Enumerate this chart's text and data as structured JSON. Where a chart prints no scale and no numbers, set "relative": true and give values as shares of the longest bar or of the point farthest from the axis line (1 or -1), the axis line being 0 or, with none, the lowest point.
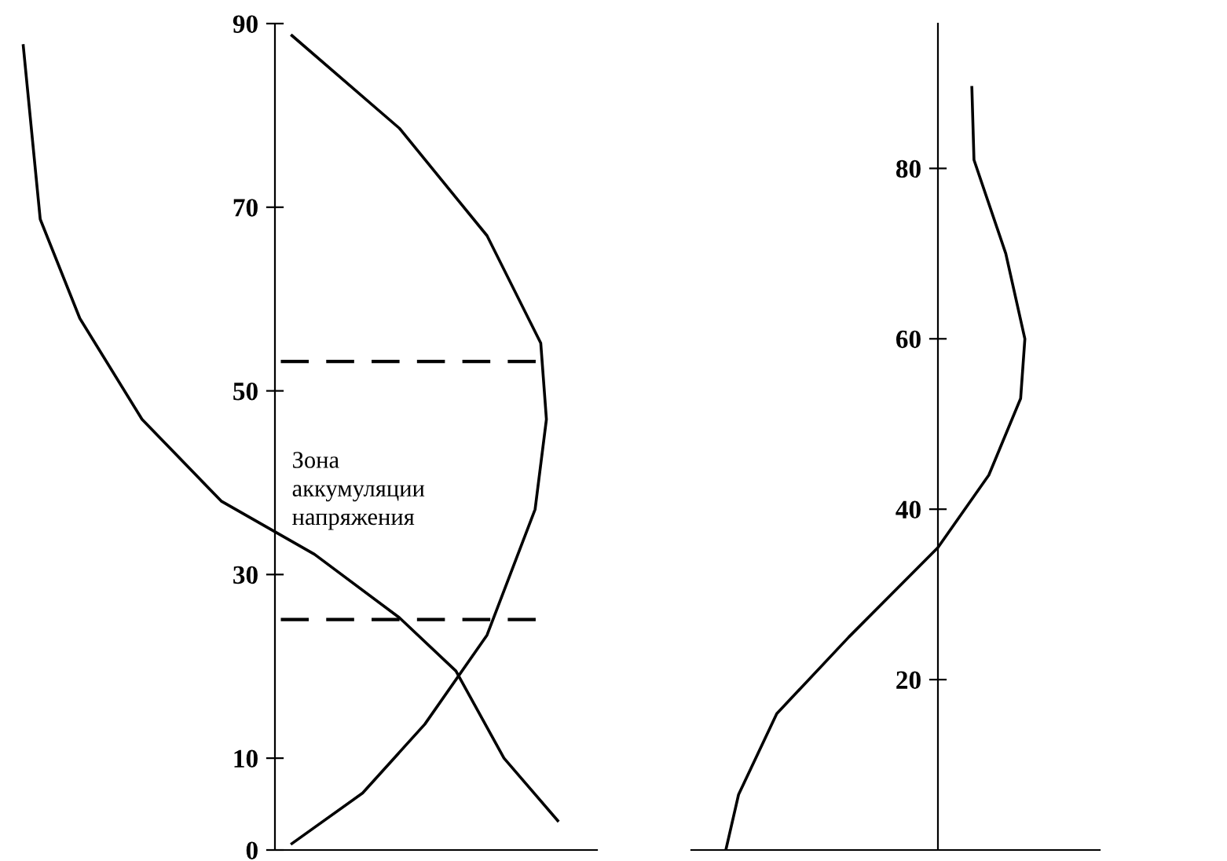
{
  "chart_data": [
    {
      "type": "line",
      "orientation": "horizontal",
      "relative": true,
      "ylim": [
        0,
        90
      ],
      "yticks": [
        0,
        10,
        30,
        50,
        70,
        90
      ],
      "grid": false,
      "legend": false,
      "marker": "none",
      "line_style": "solid",
      "series": [
        {
          "color": "#000000",
          "x": [
            87.6,
            68.7,
            57.9,
            46.9,
            38.0,
            32.2,
            25.3,
            19.5,
            10.0,
            3.2
          ],
          "values": [
            -0.89,
            -0.83,
            -0.69,
            -0.47,
            -0.19,
            0.14,
            0.44,
            0.64,
            0.81,
            1.0
          ]
        },
        {
          "color": "#000000",
          "x": [
            88.7,
            78.6,
            66.9,
            55.2,
            46.9,
            37.1,
            23.4,
            13.7,
            6.2,
            0.7
          ],
          "values": [
            0.06,
            0.44,
            0.75,
            0.94,
            0.96,
            0.92,
            0.75,
            0.53,
            0.31,
            0.06
          ]
        }
      ],
      "ref_lines": [
        {
          "axis": "y",
          "value": 53.2,
          "line_style": "dashed",
          "color": "#000000"
        },
        {
          "axis": "y",
          "value": 25.1,
          "line_style": "dashed",
          "color": "#000000"
        }
      ],
      "annotations": [
        "Зона\nаккумуляции\nнапряжения"
      ]
    },
    {
      "type": "line",
      "orientation": "horizontal",
      "relative": true,
      "ylim": [
        0,
        97
      ],
      "yticks": [
        20,
        40,
        60,
        80
      ],
      "grid": false,
      "legend": false,
      "marker": "none",
      "line_style": "solid",
      "series": [
        {
          "color": "#000000",
          "x": [
            0,
            6.5,
            16,
            25,
            35.5,
            44,
            53,
            60,
            70,
            81,
            89.5
          ],
          "values": [
            -1.0,
            -0.94,
            -0.76,
            -0.42,
            0,
            0.24,
            0.39,
            0.41,
            0.32,
            0.17,
            0.16
          ]
        }
      ]
    }
  ]
}
